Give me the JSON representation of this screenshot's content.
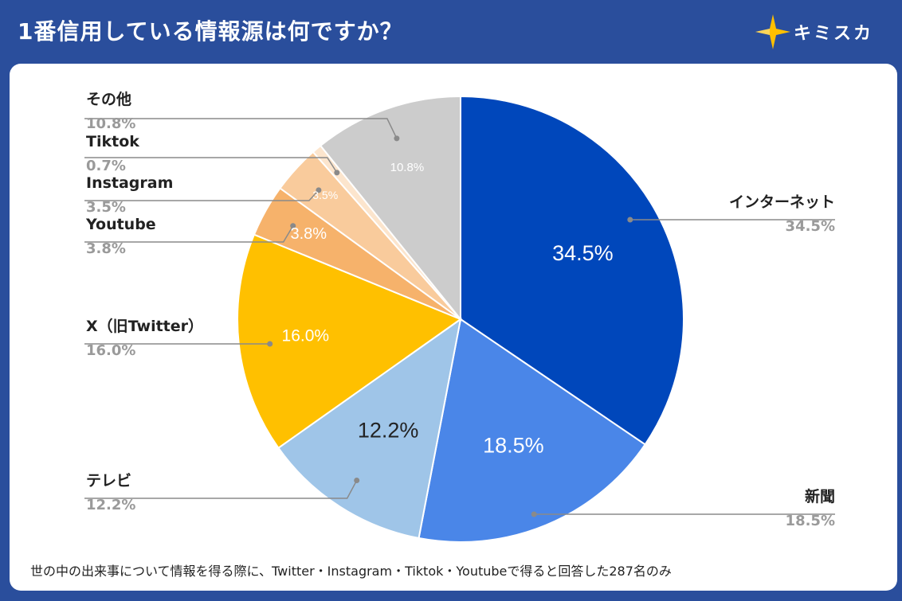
{
  "header": {
    "title": "1番信用している情報源は何ですか？",
    "logo_text": "キミスカ"
  },
  "footnote": "世の中の出来事について情報を得る際に、Twitter・Instagram・Tiktok・Youtubeで得ると回答した287名のみ",
  "chart_data": {
    "type": "pie",
    "title": "1番信用している情報源は何ですか？",
    "slices": [
      {
        "name": "インターネット",
        "value": 34.5,
        "label": "34.5%",
        "color": "#0047bb"
      },
      {
        "name": "新聞",
        "value": 18.5,
        "label": "18.5%",
        "color": "#4a86e8"
      },
      {
        "name": "テレビ",
        "value": 12.2,
        "label": "12.2%",
        "color": "#9fc5e8"
      },
      {
        "name": "X（旧Twitter）",
        "value": 16.0,
        "label": "16.0%",
        "color": "#ffc000"
      },
      {
        "name": "Youtube",
        "value": 3.8,
        "label": "3.8%",
        "color": "#f6b26b"
      },
      {
        "name": "Instagram",
        "value": 3.5,
        "label": "3.5%",
        "color": "#f9cb9c"
      },
      {
        "name": "Tiktok",
        "value": 0.7,
        "label": "0.7%",
        "color": "#fce5cd"
      },
      {
        "name": "その他",
        "value": 10.8,
        "label": "10.8%",
        "color": "#cccccc"
      }
    ]
  }
}
